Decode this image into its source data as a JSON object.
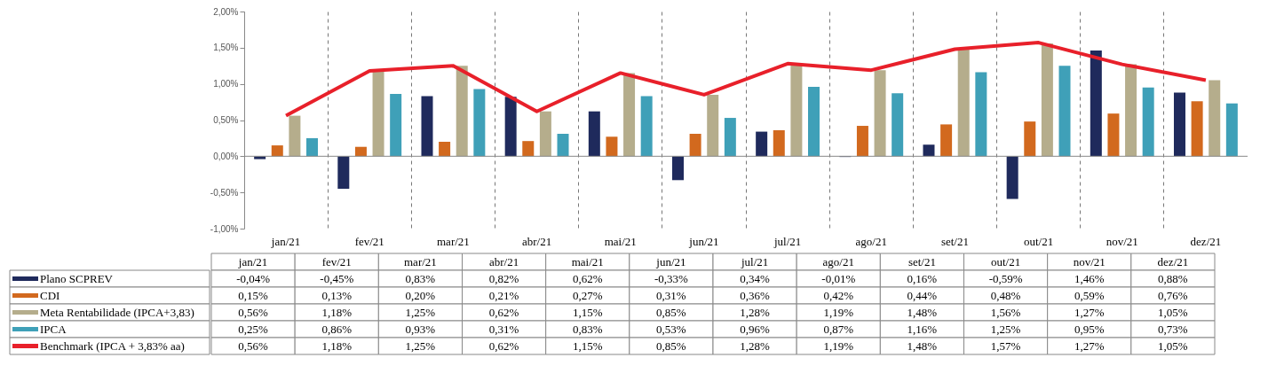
{
  "chart_data": {
    "type": "bar",
    "categories": [
      "jan/21",
      "fev/21",
      "mar/21",
      "abr/21",
      "mai/21",
      "jun/21",
      "jul/21",
      "ago/21",
      "set/21",
      "out/21",
      "nov/21",
      "dez/21"
    ],
    "series": [
      {
        "name": "Plano SCPREV",
        "color": "#1f2a5c",
        "values": [
          -0.04,
          -0.45,
          0.83,
          0.82,
          0.62,
          -0.33,
          0.34,
          -0.01,
          0.16,
          -0.59,
          1.46,
          0.88
        ],
        "value_labels": [
          "-0,04%",
          "-0,45%",
          "0,83%",
          "0,82%",
          "0,62%",
          "-0,33%",
          "0,34%",
          "-0,01%",
          "0,16%",
          "-0,59%",
          "1,46%",
          "0,88%"
        ]
      },
      {
        "name": "CDI",
        "color": "#d2691e",
        "values": [
          0.15,
          0.13,
          0.2,
          0.21,
          0.27,
          0.31,
          0.36,
          0.42,
          0.44,
          0.48,
          0.59,
          0.76
        ],
        "value_labels": [
          "0,15%",
          "0,13%",
          "0,20%",
          "0,21%",
          "0,27%",
          "0,31%",
          "0,36%",
          "0,42%",
          "0,44%",
          "0,48%",
          "0,59%",
          "0,76%"
        ]
      },
      {
        "name": "Meta Rentabilidade (IPCA+3,83)",
        "color": "#b5ad8c",
        "values": [
          0.56,
          1.18,
          1.25,
          0.62,
          1.15,
          0.85,
          1.28,
          1.19,
          1.48,
          1.56,
          1.27,
          1.05
        ],
        "value_labels": [
          "0,56%",
          "1,18%",
          "1,25%",
          "0,62%",
          "1,15%",
          "0,85%",
          "1,28%",
          "1,19%",
          "1,48%",
          "1,56%",
          "1,27%",
          "1,05%"
        ]
      },
      {
        "name": "IPCA",
        "color": "#3fa0b8",
        "values": [
          0.25,
          0.86,
          0.93,
          0.31,
          0.83,
          0.53,
          0.96,
          0.87,
          1.16,
          1.25,
          0.95,
          0.73
        ],
        "value_labels": [
          "0,25%",
          "0,86%",
          "0,93%",
          "0,31%",
          "0,83%",
          "0,53%",
          "0,96%",
          "0,87%",
          "1,16%",
          "1,25%",
          "0,95%",
          "0,73%"
        ]
      },
      {
        "name": "Benchmark (IPCA + 3,83% aa)",
        "type": "line",
        "color": "#e8202a",
        "values": [
          0.56,
          1.18,
          1.25,
          0.62,
          1.15,
          0.85,
          1.28,
          1.19,
          1.48,
          1.57,
          1.27,
          1.05
        ],
        "value_labels": [
          "0,56%",
          "1,18%",
          "1,25%",
          "0,62%",
          "1,15%",
          "0,85%",
          "1,28%",
          "1,19%",
          "1,48%",
          "1,57%",
          "1,27%",
          "1,05%"
        ]
      }
    ],
    "ylim": [
      -1.0,
      2.0
    ],
    "yticks": [
      {
        "value": -1.0,
        "label": "-1,00%"
      },
      {
        "value": -0.5,
        "label": "-0,50%"
      },
      {
        "value": 0,
        "label": "0,00%"
      },
      {
        "value": 0.5,
        "label": "0,50%"
      },
      {
        "value": 1.0,
        "label": "1,00%"
      },
      {
        "value": 1.5,
        "label": "1,50%"
      },
      {
        "value": 2.0,
        "label": "2,00%"
      }
    ],
    "grid": "x",
    "legend": "bottom",
    "marker": "none",
    "line_style": "solid"
  }
}
